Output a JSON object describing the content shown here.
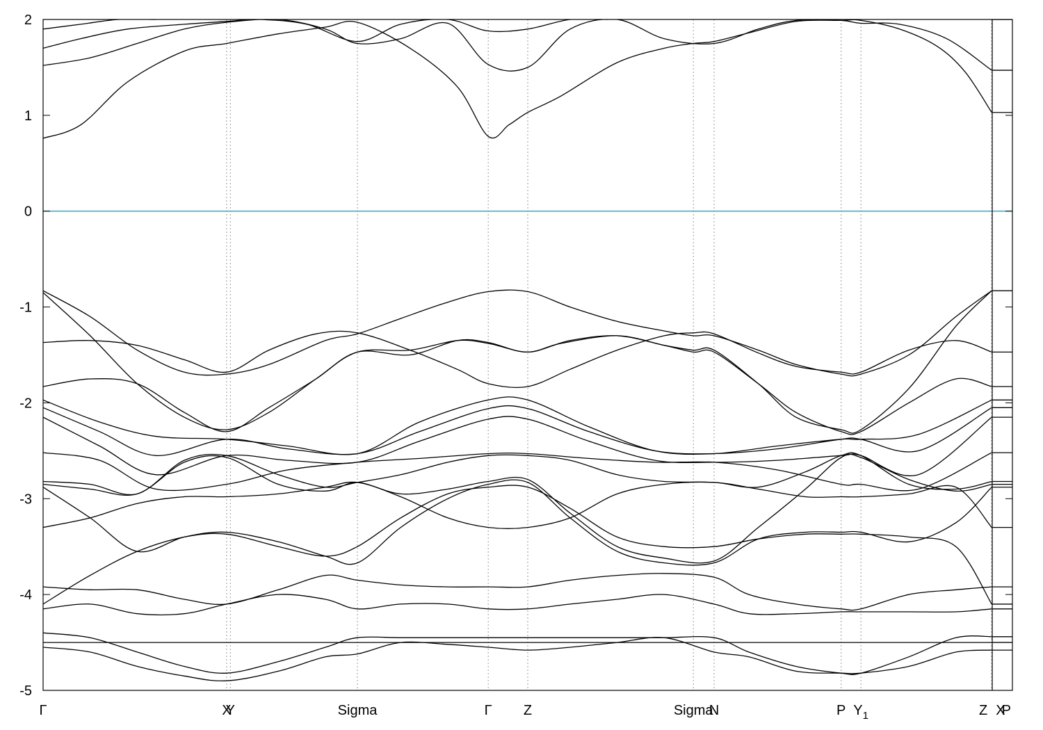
{
  "chart_data": {
    "type": "line",
    "title": "",
    "xlabel": "",
    "ylabel": "",
    "ylim": [
      -5,
      2
    ],
    "yticks": [
      2,
      1,
      0,
      -1,
      -2,
      -3,
      -4,
      -5
    ],
    "xlim": [
      0,
      10.3
    ],
    "high_symmetry_points": [
      {
        "label": "Γ",
        "x": 0.0
      },
      {
        "label": "X",
        "x": 1.95
      },
      {
        "label": "Y",
        "x": 1.99
      },
      {
        "label": "Sigma",
        "x": 3.34
      },
      {
        "label": "Γ",
        "x": 4.73
      },
      {
        "label": "Z",
        "x": 5.15
      },
      {
        "label": "Sigma",
        "x": 6.91
      },
      {
        "label": "N",
        "x": 7.13
      },
      {
        "label": "P",
        "x": 8.48
      },
      {
        "label": "Y",
        "sub": "1",
        "x": 8.69
      },
      {
        "label": "Z",
        "x": 10.08
      },
      {
        "label": "X",
        "x": 10.08
      },
      {
        "label": "P",
        "x": 10.3
      }
    ],
    "fermi_level": 0,
    "series": [
      {
        "x": [
          0,
          0.4,
          0.9,
          1.5,
          1.95,
          2.5,
          3.0,
          3.34,
          3.9,
          4.4,
          4.73,
          4.95,
          5.15,
          5.5,
          6.1,
          6.6,
          6.91,
          7.13,
          7.5,
          8.0,
          8.48,
          8.69,
          9.1,
          9.5,
          9.8,
          10.08
        ],
        "values": [
          0.76,
          0.9,
          1.35,
          1.67,
          1.75,
          1.85,
          1.92,
          1.97,
          1.7,
          1.3,
          0.78,
          0.9,
          1.03,
          1.2,
          1.55,
          1.7,
          1.75,
          1.77,
          1.86,
          1.98,
          1.99,
          1.99,
          1.9,
          1.72,
          1.45,
          1.03
        ]
      },
      {
        "x": [
          0,
          0.5,
          1.0,
          1.5,
          1.95,
          2.5,
          3.0,
          3.34,
          3.8,
          4.3,
          4.73,
          5.15,
          5.6,
          6.1,
          6.6,
          7.13,
          7.6,
          8.0,
          8.48,
          8.69,
          9.1,
          9.6,
          10.08
        ],
        "values": [
          1.52,
          1.6,
          1.75,
          1.9,
          1.97,
          2.0,
          1.9,
          1.75,
          1.8,
          1.96,
          1.53,
          1.5,
          1.9,
          2.0,
          1.8,
          1.75,
          1.9,
          1.99,
          1.99,
          1.96,
          1.95,
          1.8,
          1.47
        ]
      },
      {
        "x": [
          0,
          0.4,
          0.9,
          1.5,
          1.95,
          2.3,
          2.8,
          3.34,
          3.8,
          4.3,
          4.73,
          5.15,
          5.6,
          6.0
        ],
        "values": [
          1.7,
          1.8,
          1.9,
          1.95,
          1.98,
          2.0,
          1.95,
          1.77,
          1.95,
          2.0,
          1.88,
          1.9,
          2.0,
          2.0
        ]
      },
      {
        "x": [
          0,
          0.4,
          0.8,
          1.2
        ],
        "values": [
          1.9,
          1.95,
          2.0,
          2.0
        ]
      },
      {
        "x": [
          0,
          0.5,
          1.0,
          1.5,
          1.95,
          2.4,
          3.0,
          3.34,
          3.8,
          4.3,
          4.73,
          5.15,
          5.6,
          6.1,
          6.6,
          6.91,
          7.13,
          7.6,
          8.0,
          8.48,
          8.69,
          9.2,
          9.7,
          10.08
        ],
        "values": [
          -0.83,
          -1.1,
          -1.45,
          -1.68,
          -1.7,
          -1.6,
          -1.35,
          -1.28,
          -1.12,
          -0.95,
          -0.84,
          -0.84,
          -1.0,
          -1.15,
          -1.25,
          -1.3,
          -1.3,
          -1.45,
          -1.6,
          -1.7,
          -1.7,
          -1.5,
          -1.1,
          -0.83
        ]
      },
      {
        "x": [
          0,
          0.5,
          1.0,
          1.5,
          1.95,
          2.4,
          2.9,
          3.34,
          3.9,
          4.4,
          4.73,
          5.15,
          5.5,
          6.1,
          6.6,
          6.91,
          7.13,
          7.6,
          8.0,
          8.48,
          8.69,
          9.2,
          9.7,
          10.08
        ],
        "values": [
          -0.85,
          -1.3,
          -1.8,
          -2.15,
          -2.28,
          -2.1,
          -1.75,
          -1.47,
          -1.45,
          -1.35,
          -1.38,
          -1.47,
          -1.38,
          -1.3,
          -1.4,
          -1.45,
          -1.45,
          -1.8,
          -2.15,
          -2.28,
          -2.28,
          -1.85,
          -1.2,
          -0.83
        ]
      },
      {
        "x": [
          0,
          0.5,
          1.0,
          1.5,
          1.95,
          2.4,
          2.9,
          3.34,
          3.9,
          4.4,
          4.73,
          5.15,
          5.6,
          6.1,
          6.6,
          6.91,
          7.13,
          7.6,
          8.0,
          8.48,
          8.69,
          9.2,
          9.7,
          10.08
        ],
        "values": [
          -1.37,
          -1.35,
          -1.4,
          -1.55,
          -1.68,
          -1.45,
          -1.28,
          -1.27,
          -1.45,
          -1.65,
          -1.8,
          -1.83,
          -1.65,
          -1.45,
          -1.3,
          -1.27,
          -1.28,
          -1.48,
          -1.62,
          -1.68,
          -1.68,
          -1.45,
          -1.35,
          -1.47
        ]
      },
      {
        "x": [
          0,
          0.5,
          1.0,
          1.5,
          1.95,
          2.4,
          2.9,
          3.34,
          3.9,
          4.4,
          4.73,
          5.15,
          5.6,
          6.1,
          6.6,
          6.91,
          7.13,
          7.6,
          8.0,
          8.48,
          8.69,
          9.2,
          9.7,
          10.08
        ],
        "values": [
          -1.83,
          -1.75,
          -1.8,
          -2.1,
          -2.3,
          -2.05,
          -1.75,
          -1.47,
          -1.5,
          -1.35,
          -1.37,
          -1.47,
          -1.35,
          -1.3,
          -1.4,
          -1.47,
          -1.47,
          -1.8,
          -2.1,
          -2.3,
          -2.3,
          -2.0,
          -1.75,
          -1.83
        ]
      },
      {
        "x": [
          0,
          0.6,
          1.2,
          1.95,
          2.6,
          3.34,
          4.0,
          4.73,
          5.15,
          5.8,
          6.5,
          7.13,
          7.8,
          8.48,
          8.69,
          9.3,
          10.08
        ],
        "values": [
          -1.97,
          -2.2,
          -2.35,
          -2.38,
          -2.45,
          -2.53,
          -2.2,
          -1.97,
          -1.97,
          -2.25,
          -2.5,
          -2.53,
          -2.45,
          -2.38,
          -2.38,
          -2.33,
          -1.97
        ]
      },
      {
        "x": [
          0,
          0.6,
          1.2,
          1.95,
          2.6,
          3.34,
          4.0,
          4.73,
          5.15,
          5.8,
          6.5,
          7.13,
          7.8,
          8.48,
          8.69,
          9.3,
          10.08
        ],
        "values": [
          -2.05,
          -2.3,
          -2.55,
          -2.38,
          -2.48,
          -2.53,
          -2.3,
          -2.06,
          -2.06,
          -2.3,
          -2.5,
          -2.53,
          -2.48,
          -2.38,
          -2.38,
          -2.5,
          -2.05
        ]
      },
      {
        "x": [
          0,
          0.6,
          1.2,
          1.95,
          2.6,
          3.34,
          4.0,
          4.73,
          5.15,
          5.8,
          6.5,
          7.13,
          7.8,
          8.48,
          8.69,
          9.3,
          10.08
        ],
        "values": [
          -2.15,
          -2.45,
          -2.75,
          -2.55,
          -2.6,
          -2.62,
          -2.4,
          -2.17,
          -2.17,
          -2.4,
          -2.6,
          -2.62,
          -2.6,
          -2.55,
          -2.55,
          -2.75,
          -2.15
        ]
      },
      {
        "x": [
          0,
          0.6,
          1.2,
          1.95,
          2.6,
          3.34,
          4.0,
          4.73,
          5.15,
          5.8,
          6.5,
          7.13,
          7.8,
          8.48,
          8.69,
          9.3,
          10.08
        ],
        "values": [
          -2.52,
          -2.6,
          -2.9,
          -2.85,
          -2.7,
          -2.62,
          -2.58,
          -2.53,
          -2.53,
          -2.58,
          -2.62,
          -2.62,
          -2.7,
          -2.85,
          -2.85,
          -2.9,
          -2.52
        ]
      },
      {
        "x": [
          0,
          0.5,
          1.0,
          1.5,
          1.95,
          2.5,
          3.0,
          3.34,
          3.8,
          4.3,
          4.73,
          5.15,
          5.6,
          6.1,
          6.6,
          7.13,
          7.6,
          8.1,
          8.48,
          8.69,
          9.2,
          9.7,
          10.08
        ],
        "values": [
          -2.82,
          -2.85,
          -2.95,
          -2.6,
          -2.55,
          -2.75,
          -2.88,
          -2.83,
          -2.75,
          -2.62,
          -2.55,
          -2.55,
          -2.6,
          -2.75,
          -2.82,
          -2.83,
          -2.88,
          -2.72,
          -2.55,
          -2.55,
          -2.85,
          -2.9,
          -2.82
        ]
      },
      {
        "x": [
          0,
          0.5,
          1.0,
          1.5,
          1.95,
          2.5,
          3.0,
          3.34,
          3.8,
          4.3,
          4.73,
          5.15,
          5.6,
          6.1,
          6.6,
          7.13,
          7.6,
          8.1,
          8.48,
          8.69,
          9.2,
          9.7,
          10.08
        ],
        "values": [
          -2.85,
          -2.9,
          -2.95,
          -2.62,
          -2.57,
          -2.85,
          -2.92,
          -2.83,
          -2.95,
          -2.9,
          -2.82,
          -2.8,
          -3.15,
          -3.5,
          -3.62,
          -3.65,
          -3.3,
          -2.9,
          -2.57,
          -2.57,
          -2.8,
          -2.92,
          -2.85
        ]
      },
      {
        "x": [
          0,
          0.5,
          1.0,
          1.5,
          1.95,
          2.5,
          3.0,
          3.34,
          3.8,
          4.3,
          4.73,
          5.15,
          5.6,
          6.1,
          6.6,
          7.13,
          7.6,
          8.1,
          8.48,
          8.69,
          9.2,
          9.7,
          10.08
        ],
        "values": [
          -2.88,
          -3.2,
          -3.55,
          -3.4,
          -3.35,
          -3.45,
          -3.6,
          -3.67,
          -3.3,
          -3.0,
          -2.85,
          -2.83,
          -3.2,
          -3.55,
          -3.67,
          -3.67,
          -3.42,
          -3.35,
          -3.35,
          -3.35,
          -3.45,
          -3.25,
          -2.88
        ]
      },
      {
        "x": [
          0,
          0.5,
          1.0,
          1.5,
          1.95,
          2.5,
          3.0,
          3.34,
          3.8,
          4.3,
          4.73,
          5.15,
          5.6,
          6.1,
          6.6,
          7.13,
          7.6,
          8.1,
          8.48,
          8.69,
          9.2,
          9.7,
          10.08
        ],
        "values": [
          -3.3,
          -3.2,
          -3.05,
          -2.98,
          -2.98,
          -2.95,
          -2.88,
          -2.83,
          -2.98,
          -3.2,
          -3.3,
          -3.3,
          -3.2,
          -2.95,
          -2.85,
          -2.83,
          -2.9,
          -2.98,
          -2.98,
          -2.98,
          -2.95,
          -2.88,
          -3.3
        ]
      },
      {
        "x": [
          0,
          0.5,
          1.0,
          1.5,
          1.95,
          2.5,
          3.0,
          3.34,
          3.8,
          4.3,
          4.73,
          5.15,
          5.6,
          6.1,
          6.6,
          7.13,
          7.6,
          8.1,
          8.48,
          8.69,
          9.2,
          9.7,
          10.08
        ],
        "values": [
          -4.1,
          -3.8,
          -3.55,
          -3.4,
          -3.37,
          -3.5,
          -3.6,
          -3.5,
          -3.2,
          -2.95,
          -2.88,
          -2.88,
          -3.1,
          -3.4,
          -3.5,
          -3.5,
          -3.42,
          -3.37,
          -3.37,
          -3.37,
          -3.4,
          -3.5,
          -4.1
        ]
      },
      {
        "x": [
          0,
          0.5,
          1.0,
          1.5,
          1.95,
          2.5,
          3.0,
          3.34,
          3.8,
          4.3,
          4.73,
          5.15,
          5.6,
          6.1,
          6.6,
          7.13,
          7.5,
          8.0,
          8.48,
          8.69,
          9.2,
          9.7,
          10.08
        ],
        "values": [
          -3.92,
          -3.95,
          -3.95,
          -4.05,
          -4.1,
          -3.95,
          -3.8,
          -3.85,
          -3.9,
          -3.92,
          -3.92,
          -3.92,
          -3.85,
          -3.8,
          -3.78,
          -3.82,
          -4.0,
          -4.1,
          -4.15,
          -4.15,
          -4.0,
          -3.95,
          -3.92
        ]
      },
      {
        "x": [
          0,
          0.5,
          1.0,
          1.5,
          1.95,
          2.5,
          3.0,
          3.34,
          3.8,
          4.3,
          4.73,
          5.15,
          5.6,
          6.1,
          6.6,
          7.13,
          7.5,
          8.0,
          8.48,
          8.69,
          9.2,
          9.7,
          10.08
        ],
        "values": [
          -4.15,
          -4.1,
          -4.2,
          -4.2,
          -4.1,
          -4.0,
          -4.05,
          -4.15,
          -4.1,
          -4.1,
          -4.15,
          -4.15,
          -4.1,
          -4.05,
          -4.0,
          -4.1,
          -4.2,
          -4.2,
          -4.18,
          -4.18,
          -4.18,
          -4.18,
          -4.15
        ]
      },
      {
        "x": [
          0,
          0.5,
          1.0,
          1.5,
          1.95,
          2.5,
          3.0,
          3.34,
          3.8,
          4.3,
          4.73,
          5.15,
          5.6,
          6.1,
          6.6,
          7.13,
          7.5,
          8.0,
          8.48,
          8.69,
          9.2,
          9.7,
          10.08
        ],
        "values": [
          -4.4,
          -4.45,
          -4.6,
          -4.75,
          -4.82,
          -4.7,
          -4.55,
          -4.45,
          -4.45,
          -4.45,
          -4.45,
          -4.45,
          -4.45,
          -4.45,
          -4.45,
          -4.45,
          -4.6,
          -4.75,
          -4.82,
          -4.82,
          -4.65,
          -4.45,
          -4.44
        ]
      },
      {
        "x": [
          0,
          10.08
        ],
        "values": [
          -4.5,
          -4.5
        ]
      },
      {
        "x": [
          0,
          0.5,
          1.0,
          1.5,
          1.95,
          2.5,
          3.0,
          3.34,
          3.8,
          4.3,
          4.73,
          5.15,
          5.6,
          6.1,
          6.6,
          7.13,
          7.5,
          8.0,
          8.48,
          8.69,
          9.2,
          9.7,
          10.08
        ],
        "values": [
          -4.55,
          -4.6,
          -4.75,
          -4.85,
          -4.9,
          -4.8,
          -4.65,
          -4.62,
          -4.5,
          -4.52,
          -4.55,
          -4.58,
          -4.55,
          -4.5,
          -4.45,
          -4.6,
          -4.65,
          -4.8,
          -4.82,
          -4.82,
          -4.75,
          -4.6,
          -4.58
        ]
      }
    ]
  }
}
